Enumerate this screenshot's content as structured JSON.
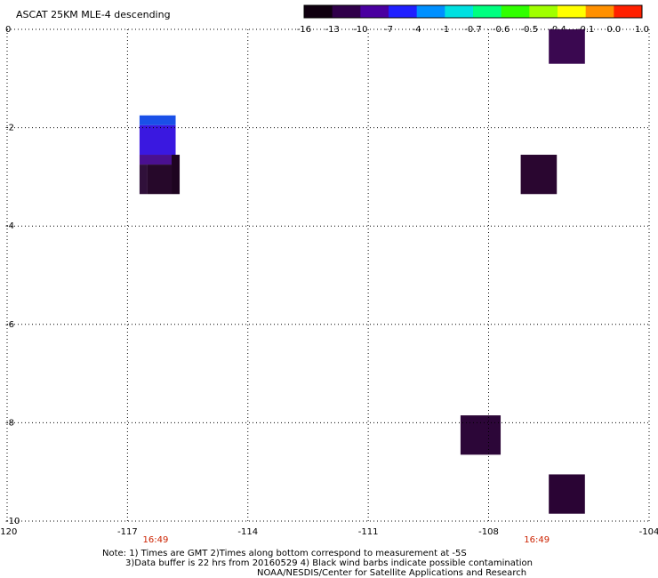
{
  "title": "ASCAT 25KM MLE-4 descending",
  "colorbar": {
    "labels": [
      "-16",
      "-13",
      "-10",
      "-7",
      "-4",
      "-1",
      "-0.7",
      "-0.6",
      "-0.5",
      "-0.4",
      "-0.1",
      "0.0",
      "1.0"
    ],
    "colors": [
      "#100010",
      "#30004a",
      "#4a00a0",
      "#2020ff",
      "#0090ff",
      "#00e0e0",
      "#00ff80",
      "#30ff00",
      "#a0ff00",
      "#ffff00",
      "#ff9000",
      "#ff2000"
    ]
  },
  "chart_data": {
    "type": "heatmap",
    "xlim": [
      -120,
      -104
    ],
    "ylim": [
      -10,
      0
    ],
    "x_ticks": [
      -120,
      -117,
      -114,
      -111,
      -108,
      -104
    ],
    "x_tick_labels": [
      "-120",
      "-117",
      "-114",
      "-111",
      "-108",
      "-104"
    ],
    "y_ticks": [
      0,
      -2,
      -4,
      -6,
      -8,
      -10
    ],
    "y_tick_labels": [
      "0",
      "-2",
      "-4",
      "-6",
      "-8",
      "-10"
    ],
    "time_labels": [
      {
        "x": -116.3,
        "text": "16:49"
      },
      {
        "x": -106.8,
        "text": "16:49"
      }
    ],
    "cells": [
      {
        "x0": -106.5,
        "x1": -105.6,
        "y0": 0.0,
        "y1": -0.7,
        "color": "#3a0850"
      },
      {
        "x0": -116.7,
        "x1": -115.8,
        "y0": -1.75,
        "y1": -1.95,
        "color": "#1a50e8"
      },
      {
        "x0": -116.7,
        "x1": -115.8,
        "y0": -1.95,
        "y1": -2.55,
        "color": "#3a18e0"
      },
      {
        "x0": -116.7,
        "x1": -115.8,
        "y0": -2.55,
        "y1": -2.75,
        "color": "#4a1090"
      },
      {
        "x0": -116.7,
        "x1": -116.5,
        "y0": -2.75,
        "y1": -3.35,
        "color": "#30103a"
      },
      {
        "x0": -116.5,
        "x1": -115.9,
        "y0": -2.75,
        "y1": -3.35,
        "color": "#26082a"
      },
      {
        "x0": -115.9,
        "x1": -115.7,
        "y0": -2.55,
        "y1": -3.35,
        "color": "#1e0420"
      },
      {
        "x0": -107.2,
        "x1": -106.3,
        "y0": -2.55,
        "y1": -3.35,
        "color": "#2a0630"
      },
      {
        "x0": -108.7,
        "x1": -107.7,
        "y0": -7.85,
        "y1": -8.65,
        "color": "#2c0638"
      },
      {
        "x0": -106.5,
        "x1": -105.6,
        "y0": -9.05,
        "y1": -9.85,
        "color": "#2a0434"
      }
    ]
  },
  "notes": {
    "line1": "Note: 1) Times are GMT 2)Times along bottom correspond to measurement at -5S",
    "line2": "3)Data buffer is 22 hrs from 20160529 4) Black wind barbs indicate possible contamination",
    "line3": "NOAA/NESDIS/Center for Satellite Applications and Research"
  }
}
